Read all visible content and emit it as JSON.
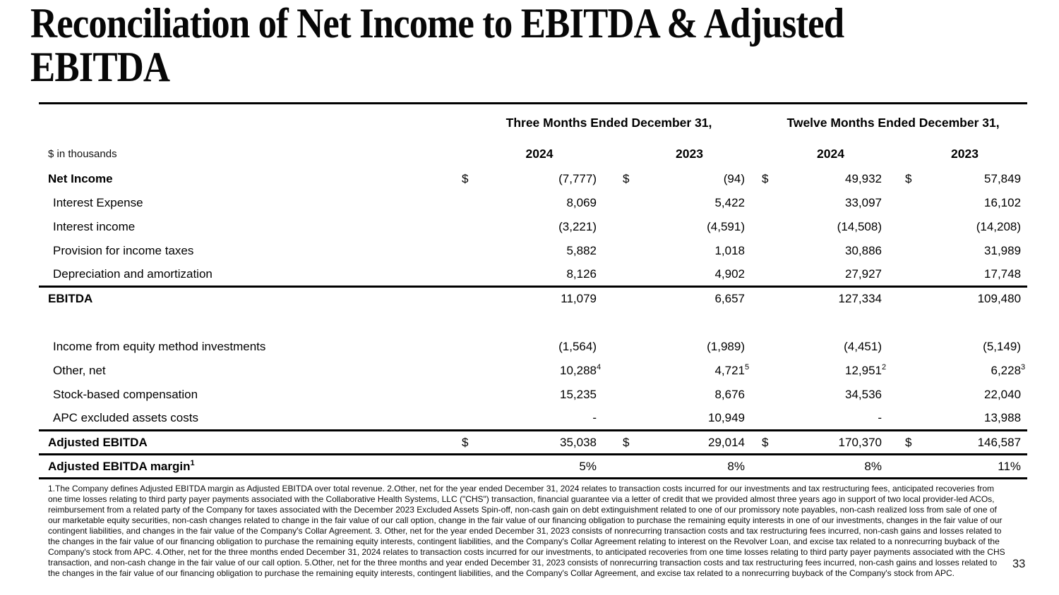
{
  "page": {
    "title_line1": "Reconciliation of Net Income to EBITDA & Adjusted",
    "title_line2": "EBITDA",
    "page_number": "33"
  },
  "table": {
    "units_label": "$ in thousands",
    "currency_symbol": "$",
    "col_groups": [
      "Three Months Ended December 31,",
      "Twelve Months Ended December 31,"
    ],
    "year_headers": [
      "2024",
      "2023",
      "2024",
      "2023"
    ],
    "rows": [
      {
        "label": "Net Income",
        "values": [
          "(7,777)",
          "(94)",
          "49,932",
          "57,849"
        ]
      },
      {
        "label": "Interest Expense",
        "values": [
          "8,069",
          "5,422",
          "33,097",
          "16,102"
        ]
      },
      {
        "label": "Interest income",
        "values": [
          "(3,221)",
          "(4,591)",
          "(14,508)",
          "(14,208)"
        ]
      },
      {
        "label": "Provision for income taxes",
        "values": [
          "5,882",
          "1,018",
          "30,886",
          "31,989"
        ]
      },
      {
        "label": "Depreciation and amortization",
        "values": [
          "8,126",
          "4,902",
          "27,927",
          "17,748"
        ]
      },
      {
        "label": "EBITDA",
        "values": [
          "11,079",
          "6,657",
          "127,334",
          "109,480"
        ]
      },
      {
        "label": "",
        "values": [
          "",
          "",
          "",
          ""
        ]
      },
      {
        "label": "Income from equity method investments",
        "values": [
          "(1,564)",
          "(1,989)",
          "(4,451)",
          "(5,149)"
        ]
      },
      {
        "label": "Other, net",
        "values": [
          "10,288",
          "4,721",
          "12,951",
          "6,228"
        ],
        "sups": [
          "4",
          "5",
          "2",
          "3"
        ]
      },
      {
        "label": "Stock-based compensation",
        "values": [
          "15,235",
          "8,676",
          "34,536",
          "22,040"
        ]
      },
      {
        "label": "APC excluded assets costs",
        "values": [
          "-",
          "10,949",
          "-",
          "13,988"
        ]
      },
      {
        "label": "Adjusted EBITDA",
        "values": [
          "35,038",
          "29,014",
          "170,370",
          "146,587"
        ]
      },
      {
        "label": "Adjusted EBITDA margin",
        "label_sup": "1",
        "values": [
          "5%",
          "8%",
          "8%",
          "11%"
        ]
      }
    ]
  },
  "footnotes": "1.The Company defines Adjusted EBITDA margin as Adjusted EBITDA over total revenue. 2.Other, net for the year ended December 31, 2024 relates to transaction costs incurred for our investments and tax restructuring fees, anticipated recoveries from one time losses relating to third party payer payments associated with the Collaborative Health Systems, LLC (\"CHS\") transaction, financial guarantee via a letter of credit that we provided almost three years ago in support of two local provider-led ACOs, reimbursement from a related party of the Company for taxes associated with the December 2023 Excluded Assets Spin-off, non-cash gain on debt extinguishment related to one of our promissory note payables, non-cash realized loss from sale of one of our marketable equity securities, non-cash changes related to change in the fair value of our call option, change in the fair value of our financing obligation to purchase the remaining equity interests in one of our investments, changes in the fair value of our contingent liabilities, and changes in the fair value of the Company's Collar Agreement. 3. Other, net for the year ended December 31, 2023 consists of nonrecurring transaction costs and tax restructuring fees incurred, non-cash gains and losses related to the changes in the fair value of our financing obligation to purchase the remaining equity interests, contingent liabilities, and the Company's Collar Agreement relating to interest on the Revolver Loan, and excise tax related to a nonrecurring buyback of the Company's stock from APC. 4.Other, net for the three months ended December 31, 2024 relates to transaction costs incurred for our investments, to anticipated recoveries from one time losses relating to third party payer payments associated with the CHS transaction, and non-cash change in the fair value of our call option.  5.Other, net for the three months and year ended December 31, 2023 consists of nonrecurring transaction costs and tax restructuring fees incurred, non-cash gains and losses related to the changes in the fair value of our financing obligation to purchase the remaining equity interests, contingent liabilities, and the Company's Collar Agreement, and excise tax related to a nonrecurring buyback of the Company's stock from APC."
}
